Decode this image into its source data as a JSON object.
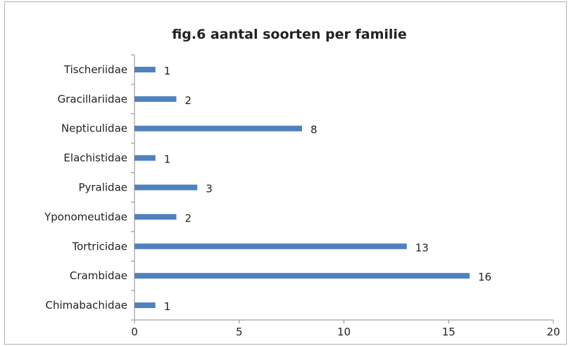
{
  "chart_data": {
    "type": "bar",
    "orientation": "horizontal",
    "title": "fig.6 aantal soorten per familie",
    "categories": [
      "Chimabachidae",
      "Crambidae",
      "Tortricidae",
      "Yponomeutidae",
      "Pyralidae",
      "Elachistidae",
      "Nepticulidae",
      "Gracillariidae",
      "Tischeriidae"
    ],
    "values": [
      1,
      16,
      13,
      2,
      3,
      1,
      8,
      2,
      1
    ],
    "x_ticks": [
      "0",
      "5",
      "10",
      "15",
      "20"
    ],
    "xlim": [
      0,
      20
    ],
    "grid": false,
    "legend": "none",
    "bar_color": "#4f81bd",
    "data_labels": true
  }
}
